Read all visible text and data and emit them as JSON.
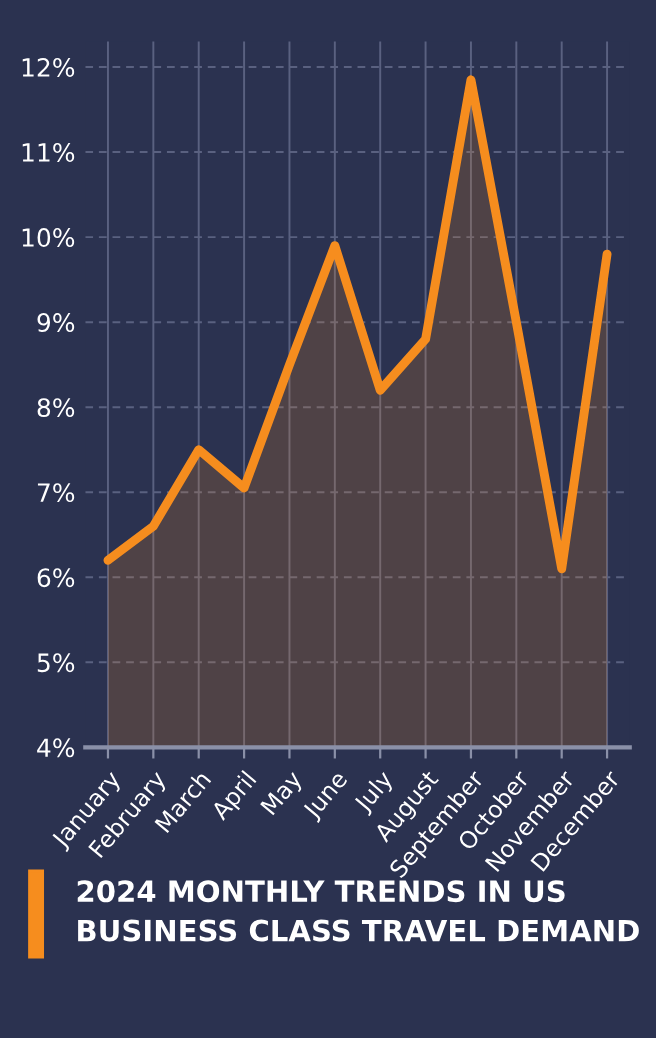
{
  "chart_data": {
    "type": "area",
    "title": "2024 MONTHLY TRENDS IN US BUSINESS CLASS TRAVEL DEMAND",
    "categories": [
      "January",
      "February",
      "March",
      "April",
      "May",
      "June",
      "July",
      "August",
      "September",
      "October",
      "November",
      "December"
    ],
    "series": [
      {
        "color": "#f68d1e",
        "values": [
          6.2,
          6.6,
          7.5,
          7.05,
          8.5,
          9.9,
          8.2,
          8.8,
          11.85,
          9.0,
          6.1,
          9.8
        ]
      }
    ],
    "ylim": [
      4,
      12.3
    ],
    "yticks": [
      {
        "value": 4,
        "label": "4%"
      },
      {
        "value": 5,
        "label": "5%"
      },
      {
        "value": 6,
        "label": "6%"
      },
      {
        "value": 7,
        "label": "7%"
      },
      {
        "value": 8,
        "label": "8%"
      },
      {
        "value": 9,
        "label": "9%"
      },
      {
        "value": 10,
        "label": "10%"
      },
      {
        "value": 11,
        "label": "11%"
      },
      {
        "value": 12,
        "label": "12%"
      }
    ],
    "grid": true,
    "marker": "none",
    "line_style": "solid"
  }
}
